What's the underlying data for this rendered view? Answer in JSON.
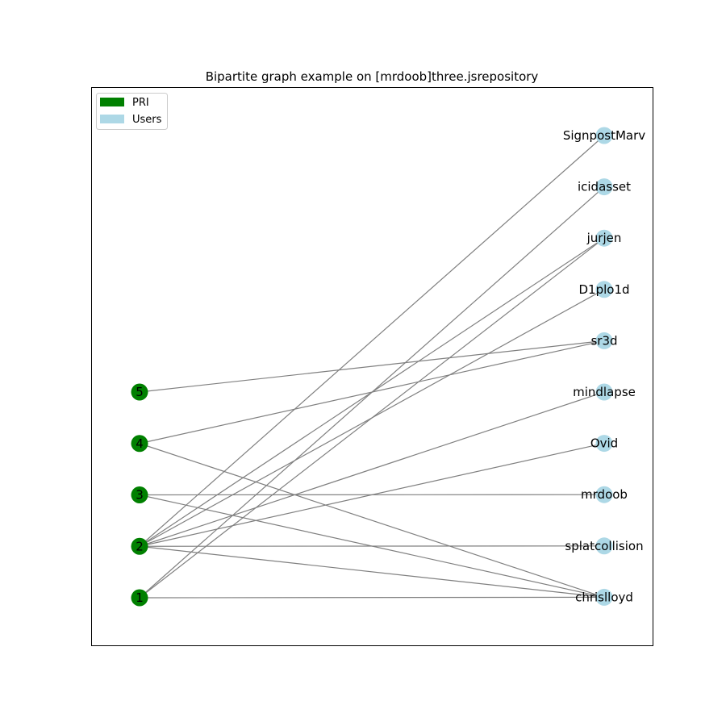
{
  "title": "Bipartite graph example on [mrdoob]three.jsrepository",
  "colors": {
    "pri": "#008000",
    "users": "#add8e6",
    "edge": "#808080"
  },
  "legend": {
    "placement": "top-left",
    "items": [
      {
        "label": "PRI",
        "color": "#008000"
      },
      {
        "label": "Users",
        "color": "#add8e6"
      }
    ]
  },
  "pri_nodes": [
    "5",
    "4",
    "3",
    "2",
    "1"
  ],
  "user_nodes": [
    "SignpostMarv",
    "icidasset",
    "jurjen",
    "D1plo1d",
    "sr3d",
    "mindlapse",
    "Ovid",
    "mrdoob",
    "splatcollision",
    "chrislloyd"
  ],
  "edges": [
    [
      "5",
      "sr3d"
    ],
    [
      "4",
      "sr3d"
    ],
    [
      "4",
      "chrislloyd"
    ],
    [
      "3",
      "mrdoob"
    ],
    [
      "3",
      "chrislloyd"
    ],
    [
      "2",
      "SignpostMarv"
    ],
    [
      "2",
      "jurjen"
    ],
    [
      "2",
      "D1plo1d"
    ],
    [
      "2",
      "mindlapse"
    ],
    [
      "2",
      "Ovid"
    ],
    [
      "2",
      "splatcollision"
    ],
    [
      "2",
      "chrislloyd"
    ],
    [
      "1",
      "icidasset"
    ],
    [
      "1",
      "jurjen"
    ],
    [
      "1",
      "chrislloyd"
    ]
  ]
}
